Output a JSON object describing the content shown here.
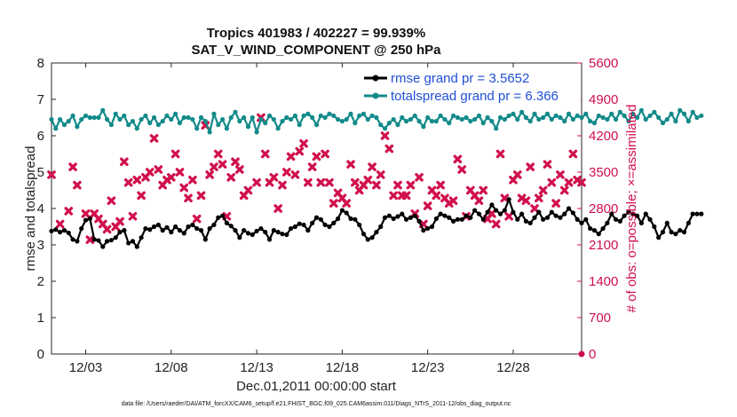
{
  "chart_data": {
    "type": "line",
    "title_line1": "Tropics 401983 / 402227 = 99.939%",
    "title_line2": "SAT_V_WIND_COMPONENT @ 250 hPa",
    "xlabel": "Dec.01,2011 00:00:00 start",
    "ylabel_left": "rmse and totalspread",
    "ylabel_right": "# of obs: o=possible; ×=assimilated",
    "footnote": "data file: /Users/raeder/DAI/ATM_forcXX/CAM6_setup/f.e21.FHIST_BGC.f09_025.CAM6assim.011/Diags_NTrS_2011-12/obs_diag_output.nc",
    "xlim": [
      1.0,
      32.0
    ],
    "xtick_values": [
      3,
      8,
      13,
      18,
      23,
      28
    ],
    "xtick_labels": [
      "12/03",
      "12/08",
      "12/13",
      "12/18",
      "12/23",
      "12/28"
    ],
    "ylim_left": [
      0,
      8
    ],
    "yticks_left": [
      "0",
      "1",
      "2",
      "3",
      "4",
      "5",
      "6",
      "7",
      "8"
    ],
    "ylim_right": [
      0,
      5600
    ],
    "yticks_right": [
      "0",
      "700",
      "1400",
      "2100",
      "2800",
      "3500",
      "4200",
      "4900",
      "5600"
    ],
    "x_start": 1.0,
    "x_step": 0.25,
    "legend": [
      {
        "name": "rmse grand pr = 3.5652",
        "color": "#000000"
      },
      {
        "name": "totalspread grand pr = 6.366",
        "color": "#138a8a"
      }
    ],
    "series": [
      {
        "name": "rmse",
        "color": "#000000",
        "values": [
          3.38,
          3.42,
          3.35,
          3.4,
          3.33,
          3.15,
          3.1,
          3.45,
          3.68,
          3.72,
          3.15,
          3.12,
          2.95,
          3.1,
          3.13,
          3.2,
          3.35,
          3.4,
          3.05,
          3.1,
          2.95,
          3.2,
          3.45,
          3.42,
          3.5,
          3.55,
          3.4,
          3.48,
          3.35,
          3.5,
          3.4,
          3.32,
          3.5,
          3.55,
          3.45,
          3.4,
          3.15,
          3.45,
          3.55,
          3.75,
          3.8,
          3.6,
          3.52,
          3.4,
          3.2,
          3.4,
          3.32,
          3.28,
          3.38,
          3.45,
          3.35,
          3.15,
          3.4,
          3.35,
          3.3,
          3.28,
          3.45,
          3.5,
          3.58,
          3.55,
          3.4,
          3.6,
          3.75,
          3.7,
          3.55,
          3.5,
          3.6,
          3.72,
          3.95,
          3.88,
          3.72,
          3.7,
          3.55,
          3.3,
          3.15,
          3.2,
          3.35,
          3.5,
          3.75,
          3.8,
          3.72,
          3.78,
          3.85,
          3.7,
          3.75,
          3.8,
          3.65,
          3.4,
          3.45,
          3.5,
          3.72,
          3.85,
          3.8,
          3.75,
          3.65,
          3.7,
          3.7,
          3.8,
          3.75,
          3.95,
          3.85,
          3.7,
          3.9,
          4.1,
          3.95,
          3.85,
          3.95,
          4.25,
          3.9,
          3.7,
          3.85,
          3.65,
          3.6,
          3.75,
          3.9,
          3.7,
          3.75,
          3.9,
          3.8,
          3.75,
          3.85,
          4.0,
          3.88,
          3.7,
          3.6,
          3.7,
          3.45,
          3.4,
          3.3,
          3.45,
          3.6,
          3.85,
          3.7,
          3.65,
          3.8,
          3.9,
          3.85,
          3.8,
          3.6,
          3.85,
          3.7,
          3.5,
          3.2,
          3.35,
          3.6,
          3.35,
          3.3,
          3.4,
          3.35,
          3.6,
          3.85,
          3.85,
          3.85
        ]
      },
      {
        "name": "totalspread",
        "color": "#138a8a",
        "values": [
          6.45,
          6.2,
          6.45,
          6.3,
          6.4,
          6.55,
          6.25,
          6.45,
          6.55,
          6.5,
          6.5,
          6.5,
          6.7,
          6.45,
          6.3,
          6.6,
          6.45,
          6.55,
          6.3,
          6.4,
          6.2,
          6.45,
          6.55,
          6.35,
          6.5,
          6.3,
          6.4,
          6.55,
          6.45,
          6.6,
          6.35,
          6.5,
          6.5,
          6.45,
          6.2,
          6.5,
          6.4,
          6.1,
          6.6,
          6.3,
          6.45,
          6.2,
          6.5,
          6.65,
          6.4,
          6.5,
          6.25,
          6.5,
          6.1,
          6.45,
          6.35,
          6.55,
          6.45,
          6.2,
          6.4,
          6.5,
          6.45,
          6.55,
          6.3,
          6.55,
          6.6,
          6.5,
          6.3,
          6.55,
          6.5,
          6.6,
          6.55,
          6.45,
          6.4,
          6.45,
          6.6,
          6.35,
          6.55,
          6.6,
          6.45,
          6.55,
          6.5,
          6.3,
          6.2,
          6.35,
          6.45,
          6.3,
          6.5,
          6.4,
          6.45,
          6.55,
          6.4,
          6.25,
          6.5,
          6.4,
          6.4,
          6.55,
          6.45,
          6.35,
          6.55,
          6.5,
          6.45,
          6.5,
          6.4,
          6.45,
          6.55,
          6.35,
          6.5,
          6.4,
          6.2,
          6.5,
          6.45,
          6.55,
          6.6,
          6.45,
          6.65,
          6.5,
          6.4,
          6.6,
          6.45,
          6.5,
          6.6,
          6.45,
          6.55,
          6.5,
          6.4,
          6.6,
          6.45,
          6.55,
          6.5,
          6.6,
          6.4,
          6.35,
          6.55,
          6.5,
          6.45,
          6.6,
          6.45,
          6.65,
          6.55,
          6.4,
          6.6,
          6.5,
          6.7,
          6.45,
          6.55,
          6.65,
          6.5,
          6.35,
          6.45,
          6.6,
          6.4,
          6.7,
          6.6,
          6.4,
          6.65,
          6.5,
          6.55
        ]
      },
      {
        "name": "# of obs assimilated",
        "color": "#d0104c",
        "axis": "right",
        "x": [
          1.0,
          1.5,
          2.0,
          2.25,
          2.5,
          3.0,
          3.25,
          3.5,
          3.75,
          4.0,
          4.25,
          4.5,
          4.75,
          5.0,
          5.25,
          5.5,
          5.75,
          6.0,
          6.25,
          6.5,
          6.75,
          7.0,
          7.25,
          7.5,
          7.75,
          8.0,
          8.25,
          8.5,
          8.75,
          9.0,
          9.25,
          9.5,
          9.75,
          10.0,
          10.25,
          10.5,
          10.75,
          11.0,
          11.25,
          11.5,
          11.75,
          12.0,
          12.25,
          12.5,
          13.0,
          13.25,
          13.5,
          13.75,
          14.0,
          14.25,
          14.5,
          14.75,
          15.0,
          15.25,
          15.5,
          15.75,
          16.0,
          16.25,
          16.5,
          16.75,
          17.0,
          17.25,
          17.5,
          17.75,
          18.0,
          18.25,
          18.5,
          18.75,
          19.0,
          19.25,
          19.5,
          19.75,
          20.0,
          20.25,
          20.5,
          20.75,
          21.0,
          21.25,
          21.5,
          21.75,
          22.0,
          22.25,
          22.5,
          22.75,
          23.0,
          23.25,
          23.5,
          23.75,
          24.0,
          24.25,
          24.5,
          24.75,
          25.0,
          25.25,
          25.5,
          25.75,
          26.0,
          26.25,
          26.5,
          26.75,
          27.0,
          27.25,
          27.5,
          27.75,
          28.0,
          28.25,
          28.5,
          28.75,
          29.0,
          29.25,
          29.5,
          29.75,
          30.0,
          30.25,
          30.5,
          30.75,
          31.0,
          31.25,
          31.5,
          31.75,
          32.0
        ],
        "values": [
          3450,
          2500,
          2750,
          3600,
          3250,
          2700,
          2200,
          2700,
          2600,
          2500,
          2400,
          2950,
          2450,
          2550,
          3700,
          3300,
          2650,
          3350,
          3050,
          3400,
          3500,
          4150,
          3550,
          3250,
          3350,
          3400,
          3850,
          3500,
          3200,
          3000,
          3350,
          2600,
          3050,
          4400,
          3450,
          3600,
          3850,
          3650,
          2650,
          3400,
          3700,
          3550,
          3050,
          3150,
          3300,
          4550,
          3850,
          3300,
          3400,
          2800,
          3250,
          3500,
          3800,
          3450,
          3900,
          4050,
          3300,
          3600,
          3800,
          3300,
          3850,
          3300,
          2900,
          3100,
          3000,
          2900,
          3650,
          3300,
          3150,
          3250,
          3350,
          3600,
          3250,
          3450,
          4200,
          3950,
          3050,
          3250,
          3050,
          3050,
          3250,
          2700,
          3400,
          2500,
          2850,
          3150,
          3050,
          3250,
          3000,
          2900,
          2950,
          3750,
          3550,
          2650,
          3150,
          3050,
          2950,
          3150,
          2600,
          2700,
          2500,
          3850,
          3000,
          2650,
          3350,
          3450,
          3000,
          2950,
          3600,
          2800,
          3000,
          3150,
          3650,
          3300,
          2900,
          3450,
          3150,
          3300,
          3850,
          3350,
          3300
        ]
      }
    ],
    "possible_obs_marker": {
      "x": 32.0,
      "value": 0
    }
  }
}
